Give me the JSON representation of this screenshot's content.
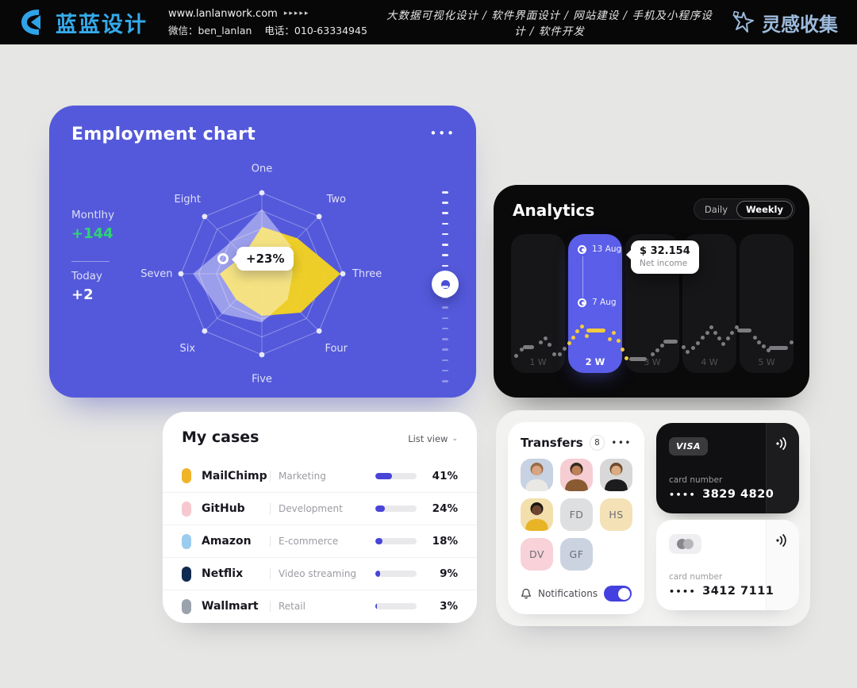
{
  "header": {
    "brand_name": "蓝蓝设计",
    "website": "www.lanlanwork.com",
    "arrows": "▸▸▸▸▸",
    "wechat": "微信：ben_lanlan",
    "phone": "电话：010-63334945",
    "services": [
      "大数据可视化设计",
      "软件界面设计",
      "网站建设",
      "手机及小程序设计",
      "软件开发"
    ],
    "services_separator": "  /  ",
    "collect_label": "灵感收集"
  },
  "employment": {
    "title": "Employment chart",
    "menu_dots": "•••",
    "monthly_label": "Montlhy",
    "monthly_value": "+144",
    "monthly_value_color": "#2FD573",
    "today_label": "Today",
    "today_value": "+2",
    "badge": "+23%",
    "radar": {
      "type": "radar",
      "axes": [
        "One",
        "Two",
        "Three",
        "Four",
        "Five",
        "Six",
        "Seven",
        "Eight"
      ],
      "rings": [
        1,
        0.78,
        0.56
      ],
      "series": [
        {
          "name": "previous",
          "color": "rgba(255,255,255,0.42)",
          "values": [
            0.8,
            0.5,
            0.38,
            0.45,
            0.6,
            0.7,
            0.85,
            0.55
          ]
        },
        {
          "name": "current",
          "color": "#F6D41F",
          "values": [
            0.58,
            0.62,
            0.97,
            0.68,
            0.52,
            0.45,
            0.52,
            0.32
          ]
        }
      ]
    },
    "slider": {
      "ticks": 19,
      "knob_ratio": 0.48
    }
  },
  "analytics": {
    "title": "Analytics",
    "toggle_options": [
      "Daily",
      "Weekly"
    ],
    "toggle_selected": "Weekly",
    "weeks": [
      "1 W",
      "2 W",
      "3 W",
      "4 W",
      "5 W"
    ],
    "highlight_index": 1,
    "marker_top": "13 Aug",
    "marker_bottom": "7 Aug",
    "tooltip_value": "$ 32.154",
    "tooltip_label": "Net income",
    "sparkline": {
      "type": "dotted-line",
      "gray": "#7C7C80",
      "yellow": "#F2CB3D",
      "highlight_range": [
        70,
        147
      ],
      "points": [
        [
          6,
          153,
          5
        ],
        [
          13,
          145,
          5
        ],
        [
          22,
          142,
          14
        ],
        [
          37,
          136,
          5
        ],
        [
          43,
          131,
          5
        ],
        [
          48,
          139,
          5
        ],
        [
          54,
          151,
          5
        ],
        [
          61,
          151,
          5
        ],
        [
          67,
          144,
          5
        ],
        [
          73,
          137,
          5
        ],
        [
          78,
          130,
          5
        ],
        [
          83,
          122,
          5
        ],
        [
          89,
          116,
          5
        ],
        [
          95,
          128,
          5
        ],
        [
          107,
          121,
          24
        ],
        [
          124,
          132,
          5
        ],
        [
          129,
          124,
          5
        ],
        [
          135,
          134,
          5
        ],
        [
          140,
          145,
          5
        ],
        [
          145,
          156,
          5
        ],
        [
          160,
          157,
          22
        ],
        [
          178,
          151,
          5
        ],
        [
          184,
          146,
          5
        ],
        [
          190,
          140,
          5
        ],
        [
          201,
          135,
          18
        ],
        [
          217,
          142,
          5
        ],
        [
          222,
          148,
          5
        ],
        [
          229,
          143,
          5
        ],
        [
          235,
          137,
          5
        ],
        [
          241,
          130,
          5
        ],
        [
          247,
          124,
          5
        ],
        [
          252,
          117,
          5
        ],
        [
          257,
          124,
          5
        ],
        [
          262,
          131,
          5
        ],
        [
          267,
          138,
          5
        ],
        [
          273,
          131,
          5
        ],
        [
          278,
          124,
          5
        ],
        [
          284,
          117,
          5
        ],
        [
          294,
          121,
          18
        ],
        [
          307,
          130,
          5
        ],
        [
          312,
          136,
          5
        ],
        [
          318,
          141,
          5
        ],
        [
          324,
          146,
          5
        ],
        [
          337,
          143,
          24
        ],
        [
          353,
          136,
          5
        ]
      ]
    }
  },
  "my_cases": {
    "title": "My cases",
    "view_label": "List view",
    "chevron": "⌄",
    "rows": [
      {
        "name": "MailChimp",
        "category": "Marketing",
        "percent": 41,
        "percent_label": "41%",
        "icon_color": "#F0B429"
      },
      {
        "name": "GitHub",
        "category": "Development",
        "percent": 24,
        "percent_label": "24%",
        "icon_color": "#F5C9CF"
      },
      {
        "name": "Amazon",
        "category": "E-commerce",
        "percent": 18,
        "percent_label": "18%",
        "icon_color": "#9CCBF0"
      },
      {
        "name": "Netflix",
        "category": "Video streaming",
        "percent": 9,
        "percent_label": "9%",
        "icon_color": "#10294F"
      },
      {
        "name": "Wallmart",
        "category": "Retail",
        "percent": 3,
        "percent_label": "3%",
        "icon_color": "#9AA2AB"
      }
    ]
  },
  "transfers": {
    "title": "Transfers",
    "count": "8",
    "menu_dots": "•••",
    "avatars": [
      {
        "kind": "photo",
        "bg": "#C7D2E2",
        "skin": "#D8A482",
        "hair": "#9A6B45",
        "shirt": "#EAE8E4"
      },
      {
        "kind": "photo",
        "bg": "#F6CDD3",
        "skin": "#BE8057",
        "hair": "#35291F",
        "shirt": "#8A5A32"
      },
      {
        "kind": "photo",
        "bg": "#D8D8D8",
        "skin": "#DCAB81",
        "hair": "#6B4A2F",
        "shirt": "#1C1C1E"
      },
      {
        "kind": "photo",
        "bg": "#F2DFAC",
        "skin": "#6E4630",
        "hair": "#1E1714",
        "shirt": "#E8B426"
      },
      {
        "kind": "initials",
        "label": "FD",
        "bg": "#DEDFE1"
      },
      {
        "kind": "initials",
        "label": "HS",
        "bg": "#F4E2B6"
      },
      {
        "kind": "initials",
        "label": "DV",
        "bg": "#F8D2D8"
      },
      {
        "kind": "initials",
        "label": "GF",
        "bg": "#CBD3E1"
      }
    ],
    "notifications_label": "Notifications",
    "notifications_on": true
  },
  "bank_cards": {
    "dark": {
      "brand": "VISA",
      "label": "card number",
      "masked": "••••",
      "number": "3829 4820"
    },
    "light": {
      "brand": "mastercard",
      "label": "card number",
      "masked": "••••",
      "number": "3412 7111"
    }
  }
}
